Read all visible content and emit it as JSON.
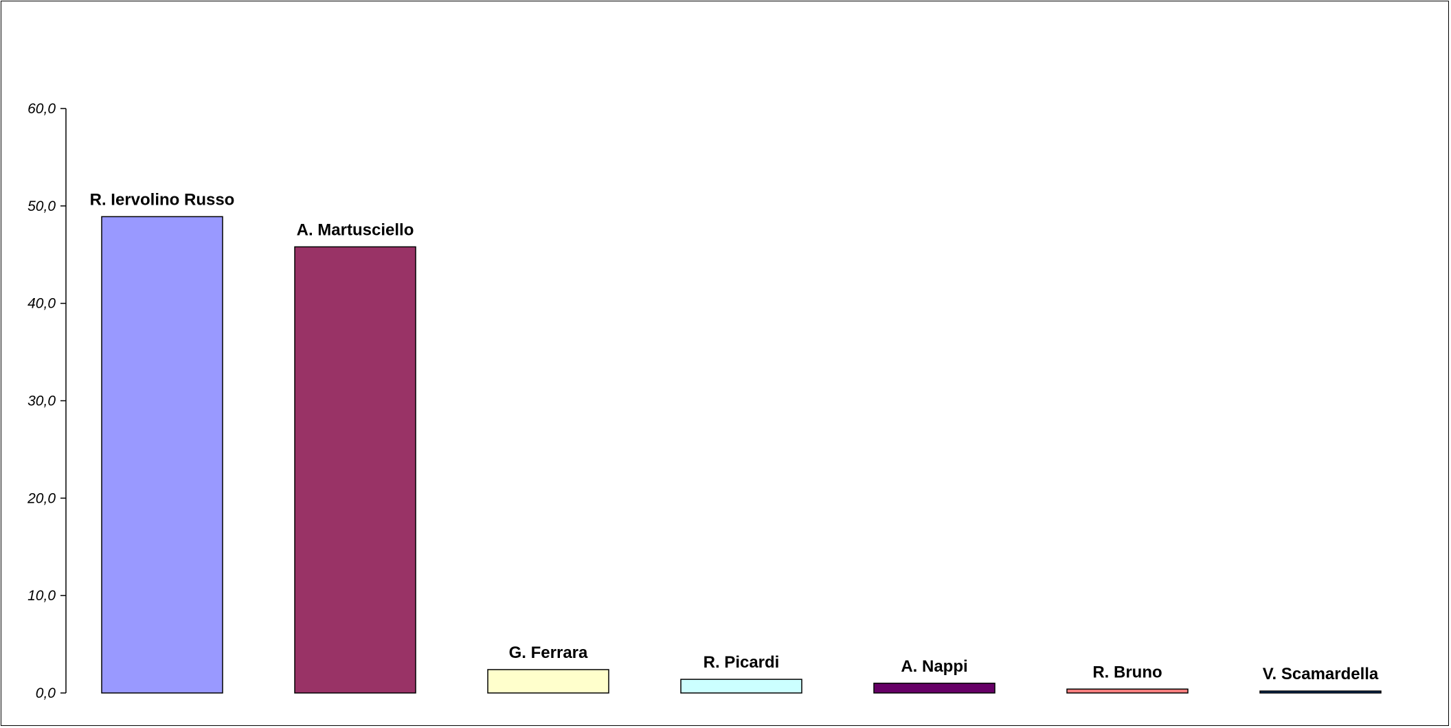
{
  "chart_data": {
    "type": "bar",
    "title": "",
    "xlabel": "",
    "ylabel": "",
    "categories": [
      "R. Iervolino Russo",
      "A. Martusciello",
      "G. Ferrara",
      "R. Picardi",
      "A. Nappi",
      "R. Bruno",
      "V. Scamardella"
    ],
    "values": [
      48.9,
      45.8,
      2.4,
      1.4,
      1.0,
      0.4,
      0.2
    ],
    "colors": [
      "#9999ff",
      "#993366",
      "#ffffcc",
      "#ccffff",
      "#660066",
      "#ff8080",
      "#003366"
    ],
    "ylim": [
      0,
      60
    ],
    "yticks": [
      0,
      10,
      20,
      30,
      40,
      50,
      60
    ],
    "ytick_labels": [
      "0,0",
      "10,0",
      "20,0",
      "30,0",
      "40,0",
      "50,0",
      "60,0"
    ],
    "grid": false,
    "legend": false,
    "data_labels": "category-names-above-bars"
  }
}
